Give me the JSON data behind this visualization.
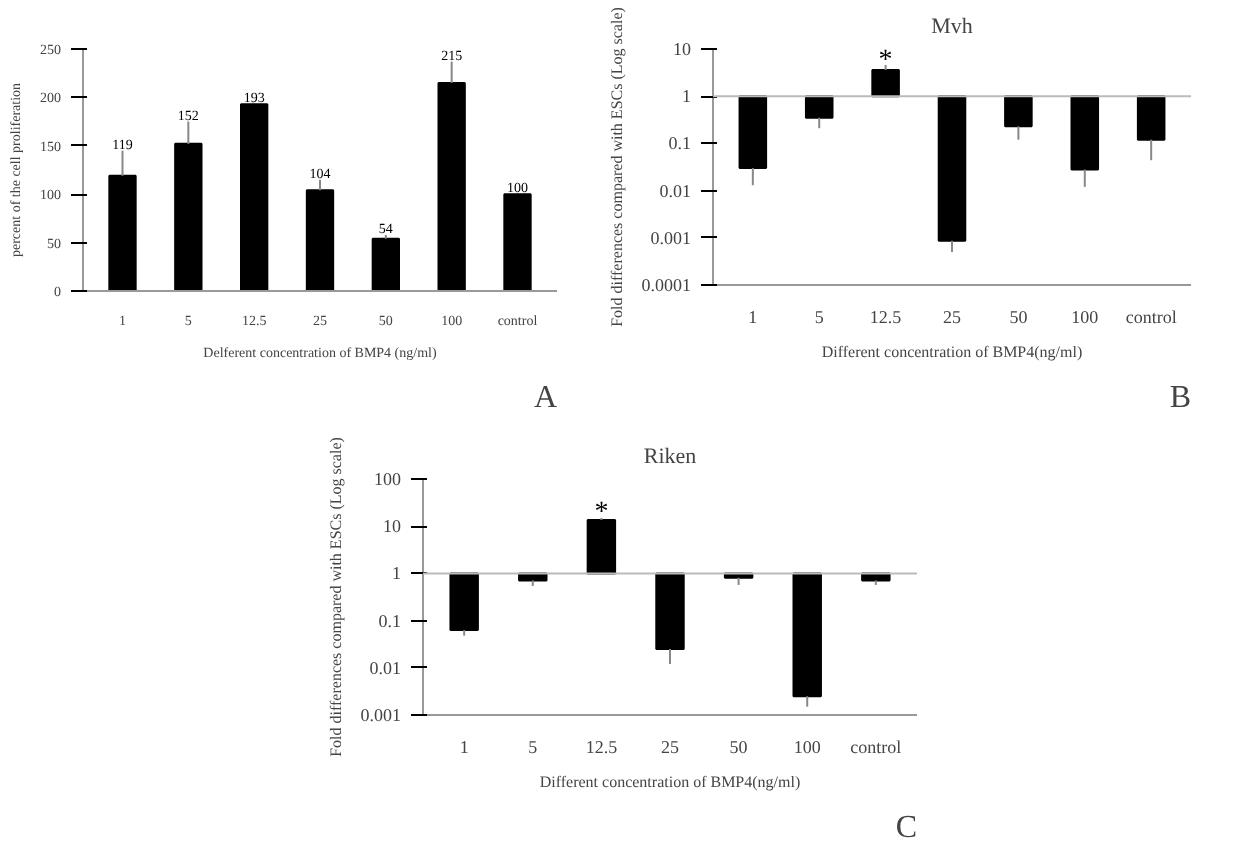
{
  "chart_data": [
    {
      "type": "bar",
      "categories": [
        "1",
        "5",
        "12.5",
        "25",
        "50",
        "100",
        "control"
      ],
      "values": [
        119,
        152,
        193,
        104,
        54,
        215,
        100
      ],
      "color": "#000000",
      "errors": [
        [
          119,
          145
        ],
        [
          152,
          175
        ],
        null,
        [
          104,
          115
        ],
        [
          54,
          58
        ],
        [
          215,
          237
        ],
        null
      ],
      "data_labels": true,
      "ylim": [
        0,
        250
      ],
      "yticks": [
        0,
        50,
        100,
        150,
        200,
        250
      ],
      "ylabel": "percent of the cell proliferation",
      "xlabel": "Delferent concentration of BMP4 (ng/ml)",
      "annotations": [
        "A"
      ],
      "grid": false
    },
    {
      "type": "bar",
      "title": "Mvh",
      "categories": [
        "1",
        "5",
        "12.5",
        "25",
        "50",
        "100",
        "control"
      ],
      "base": [
        1,
        1,
        1,
        1,
        1,
        1,
        1
      ],
      "values": [
        -0.97,
        -0.65,
        2.6,
        -0.99913,
        -0.77,
        -0.972,
        -0.88
      ],
      "color": "#000000",
      "errors": [
        [
          0.013,
          0.03
        ],
        [
          0.21,
          0.35
        ],
        [
          3.6,
          4.6
        ],
        [
          0.0005,
          0.00087
        ],
        [
          0.12,
          0.23
        ],
        [
          0.012,
          0.028
        ],
        [
          0.044,
          0.12
        ]
      ],
      "log": true,
      "ylim": [
        0.0001,
        10
      ],
      "yticks": [
        0.0001,
        0.001,
        0.01,
        0.1,
        1,
        10
      ],
      "ylabel": "Fold differences compared with ESCs (Log scale)",
      "xlabel": "Different concentration of BMP4(ng/ml)",
      "ref_lines": [
        {
          "axis": "y",
          "value": 1,
          "color": "#bbbbbb"
        }
      ],
      "annotations": [
        {
          "text": "*",
          "x": "12.5",
          "y": 5.5
        },
        "B"
      ],
      "grid": false
    },
    {
      "type": "bar",
      "title": "Riken",
      "categories": [
        "1",
        "5",
        "12.5",
        "25",
        "50",
        "100",
        "control"
      ],
      "base": [
        1,
        1,
        1,
        1,
        1,
        1,
        1
      ],
      "values": [
        -0.937,
        -0.29,
        12.5,
        -0.975,
        -0.19,
        -0.9975,
        -0.29
      ],
      "color": "#000000",
      "errors": [
        [
          0.048,
          0.063
        ],
        [
          0.54,
          0.71
        ],
        [
          13.5,
          15
        ],
        [
          0.012,
          0.025
        ],
        [
          0.57,
          0.81
        ],
        [
          0.0015,
          0.0025
        ],
        [
          0.57,
          0.71
        ]
      ],
      "log": true,
      "ylim": [
        0.001,
        100
      ],
      "yticks": [
        0.001,
        0.01,
        0.1,
        1,
        10,
        100
      ],
      "ylabel": "Fold differences compared with ESCs (Log scale)",
      "xlabel": "Different concentration of BMP4(ng/ml)",
      "ref_lines": [
        {
          "axis": "y",
          "value": 1,
          "color": "#bbbbbb"
        }
      ],
      "annotations": [
        {
          "text": "*",
          "x": "12.5",
          "y": 19
        },
        "C"
      ],
      "grid": false
    }
  ]
}
